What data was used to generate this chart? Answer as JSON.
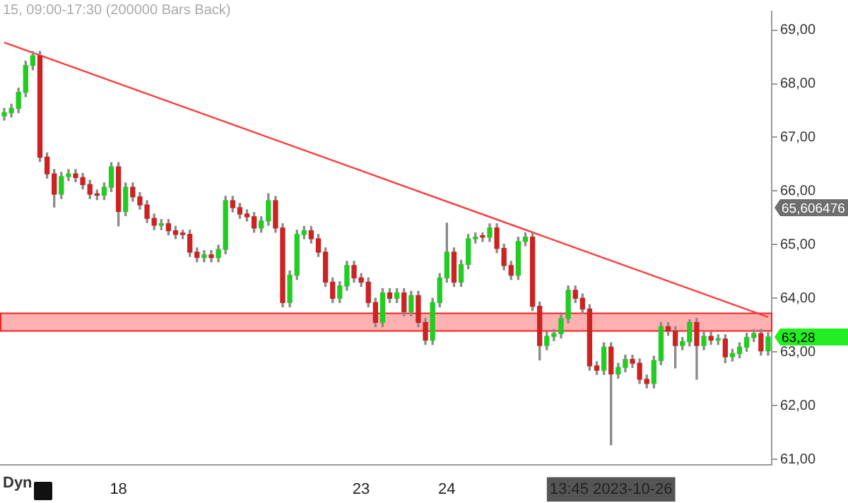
{
  "chart_data": {
    "type": "candlestick",
    "title": "15, 09:00-17:30 (200000 Bars Back)",
    "categories": [
      null,
      null,
      null,
      null,
      null,
      null,
      null,
      null,
      null,
      null,
      null,
      null,
      null,
      null,
      null,
      null,
      "18",
      null,
      null,
      null,
      null,
      null,
      null,
      null,
      null,
      null,
      null,
      null,
      null,
      null,
      null,
      null,
      null,
      null,
      null,
      null,
      null,
      null,
      null,
      null,
      null,
      null,
      null,
      null,
      null,
      null,
      null,
      null,
      null,
      null,
      "23",
      null,
      null,
      null,
      null,
      null,
      null,
      null,
      null,
      null,
      null,
      null,
      "24",
      null,
      null,
      null,
      null,
      null,
      null,
      null,
      null,
      null,
      null,
      null,
      null,
      null,
      null,
      null,
      null,
      null,
      null,
      null,
      null,
      null,
      null,
      "13:45 2023-10-26",
      null,
      null,
      null,
      null,
      null,
      null,
      null,
      null,
      null,
      null,
      null,
      null,
      null,
      null,
      null,
      null,
      null,
      null,
      null,
      null,
      null,
      null
    ],
    "ohlc": [
      [
        67.4,
        67.54,
        67.32,
        67.46
      ],
      [
        67.46,
        67.62,
        67.38,
        67.54
      ],
      [
        67.54,
        67.92,
        67.46,
        67.84
      ],
      [
        67.84,
        68.42,
        67.76,
        68.34
      ],
      [
        68.34,
        68.6,
        68.26,
        68.52
      ],
      [
        68.52,
        68.6,
        66.55,
        66.63
      ],
      [
        66.63,
        66.71,
        66.24,
        66.32
      ],
      [
        66.32,
        66.4,
        65.7,
        65.94
      ],
      [
        65.94,
        66.35,
        65.86,
        66.27
      ],
      [
        66.27,
        66.4,
        66.19,
        66.32
      ],
      [
        66.32,
        66.4,
        66.17,
        66.25
      ],
      [
        66.25,
        66.33,
        66.04,
        66.12
      ],
      [
        66.12,
        66.2,
        65.86,
        65.94
      ],
      [
        65.94,
        66.02,
        65.84,
        65.92
      ],
      [
        65.92,
        66.15,
        65.84,
        66.07
      ],
      [
        66.07,
        66.53,
        65.99,
        66.45
      ],
      [
        66.45,
        66.53,
        65.35,
        65.62
      ],
      [
        65.62,
        66.15,
        65.54,
        66.07
      ],
      [
        66.07,
        66.15,
        65.81,
        65.89
      ],
      [
        65.89,
        65.97,
        65.66,
        65.74
      ],
      [
        65.74,
        65.82,
        65.41,
        65.49
      ],
      [
        65.49,
        65.57,
        65.28,
        65.36
      ],
      [
        65.36,
        65.47,
        65.28,
        65.39
      ],
      [
        65.39,
        65.47,
        65.18,
        65.26
      ],
      [
        65.26,
        65.34,
        65.11,
        65.19
      ],
      [
        65.19,
        65.27,
        65.11,
        65.19
      ],
      [
        65.19,
        65.27,
        64.78,
        64.86
      ],
      [
        64.86,
        64.94,
        64.68,
        64.76
      ],
      [
        64.76,
        64.89,
        64.68,
        64.81
      ],
      [
        64.81,
        64.89,
        64.68,
        64.76
      ],
      [
        64.76,
        64.99,
        64.68,
        64.91
      ],
      [
        64.91,
        65.9,
        64.83,
        65.82
      ],
      [
        65.82,
        65.9,
        65.61,
        65.69
      ],
      [
        65.69,
        65.77,
        65.49,
        65.57
      ],
      [
        65.57,
        65.65,
        65.44,
        65.52
      ],
      [
        65.52,
        65.6,
        65.23,
        65.31
      ],
      [
        65.31,
        65.52,
        65.23,
        65.44
      ],
      [
        65.44,
        65.95,
        65.36,
        65.82
      ],
      [
        65.82,
        65.9,
        65.23,
        65.31
      ],
      [
        65.31,
        65.39,
        63.84,
        63.92
      ],
      [
        63.92,
        64.51,
        63.84,
        64.43
      ],
      [
        64.43,
        65.27,
        64.35,
        65.19
      ],
      [
        65.19,
        65.34,
        65.11,
        65.26
      ],
      [
        65.26,
        65.34,
        65.03,
        65.11
      ],
      [
        65.11,
        65.19,
        64.78,
        64.86
      ],
      [
        64.86,
        64.94,
        64.22,
        64.3
      ],
      [
        64.3,
        64.38,
        63.92,
        64.0
      ],
      [
        64.0,
        64.31,
        63.92,
        64.23
      ],
      [
        64.23,
        64.69,
        64.15,
        64.61
      ],
      [
        64.61,
        64.69,
        64.3,
        64.38
      ],
      [
        64.38,
        64.46,
        64.22,
        64.3
      ],
      [
        64.3,
        64.38,
        63.84,
        63.92
      ],
      [
        63.92,
        64.0,
        63.47,
        63.55
      ],
      [
        63.55,
        64.18,
        63.47,
        64.1
      ],
      [
        64.1,
        64.18,
        63.92,
        64.0
      ],
      [
        64.0,
        64.18,
        63.92,
        64.1
      ],
      [
        64.1,
        64.18,
        63.67,
        63.75
      ],
      [
        63.75,
        64.13,
        63.67,
        64.05
      ],
      [
        64.05,
        64.13,
        63.47,
        63.55
      ],
      [
        63.55,
        63.63,
        63.14,
        63.22
      ],
      [
        63.22,
        64.0,
        63.14,
        63.92
      ],
      [
        63.92,
        64.46,
        63.84,
        64.38
      ],
      [
        64.38,
        65.4,
        64.3,
        64.86
      ],
      [
        64.86,
        64.94,
        64.22,
        64.3
      ],
      [
        64.3,
        64.71,
        64.22,
        64.63
      ],
      [
        64.63,
        65.19,
        64.55,
        65.11
      ],
      [
        65.11,
        65.22,
        65.03,
        65.14
      ],
      [
        65.14,
        65.22,
        65.06,
        65.14
      ],
      [
        65.14,
        65.39,
        65.06,
        65.31
      ],
      [
        65.31,
        65.39,
        64.85,
        64.93
      ],
      [
        64.93,
        65.01,
        64.53,
        64.61
      ],
      [
        64.61,
        64.69,
        64.35,
        64.43
      ],
      [
        64.43,
        65.14,
        64.35,
        65.06
      ],
      [
        65.06,
        65.22,
        64.98,
        65.14
      ],
      [
        65.14,
        65.22,
        63.77,
        63.85
      ],
      [
        63.85,
        63.93,
        62.85,
        63.12
      ],
      [
        63.12,
        63.37,
        63.04,
        63.29
      ],
      [
        63.29,
        63.42,
        63.21,
        63.34
      ],
      [
        63.34,
        63.7,
        63.26,
        63.62
      ],
      [
        63.62,
        64.23,
        63.54,
        64.15
      ],
      [
        64.15,
        64.23,
        63.92,
        64.0
      ],
      [
        64.0,
        64.08,
        63.72,
        63.8
      ],
      [
        63.8,
        63.88,
        62.66,
        62.74
      ],
      [
        62.74,
        62.82,
        62.58,
        62.66
      ],
      [
        62.66,
        63.17,
        62.58,
        63.09
      ],
      [
        63.09,
        63.17,
        61.27,
        62.59
      ],
      [
        62.59,
        62.79,
        62.51,
        62.71
      ],
      [
        62.71,
        62.94,
        62.63,
        62.86
      ],
      [
        62.86,
        62.94,
        62.71,
        62.79
      ],
      [
        62.79,
        62.87,
        62.41,
        62.49
      ],
      [
        62.49,
        62.57,
        62.33,
        62.41
      ],
      [
        62.41,
        62.92,
        62.33,
        62.84
      ],
      [
        62.84,
        63.55,
        62.76,
        63.47
      ],
      [
        63.47,
        63.55,
        63.31,
        63.39
      ],
      [
        63.39,
        63.47,
        62.7,
        63.12
      ],
      [
        63.12,
        63.27,
        63.04,
        63.19
      ],
      [
        63.19,
        63.6,
        63.11,
        63.55
      ],
      [
        63.55,
        63.63,
        62.49,
        63.12
      ],
      [
        63.12,
        63.37,
        63.04,
        63.29
      ],
      [
        63.29,
        63.37,
        63.14,
        63.22
      ],
      [
        63.22,
        63.32,
        63.14,
        63.24
      ],
      [
        63.24,
        63.32,
        62.8,
        62.91
      ],
      [
        62.91,
        63.05,
        62.83,
        62.97
      ],
      [
        62.97,
        63.17,
        62.89,
        63.09
      ],
      [
        63.09,
        63.35,
        63.01,
        63.27
      ],
      [
        63.27,
        63.42,
        63.19,
        63.34
      ],
      [
        63.34,
        63.42,
        62.94,
        63.02
      ],
      [
        63.02,
        63.36,
        62.94,
        63.28
      ]
    ],
    "colors": [
      "#22cc22",
      "#22cc22",
      "#22cc22",
      "#22cc22",
      "#22cc22",
      "#cc2222",
      "#cc2222",
      "#cc2222",
      "#22cc22",
      "#22cc22",
      "#cc2222",
      "#cc2222",
      "#cc2222",
      "#cc2222",
      "#22cc22",
      "#22cc22",
      "#cc2222",
      "#22cc22",
      "#cc2222",
      "#cc2222",
      "#cc2222",
      "#cc2222",
      "#22cc22",
      "#cc2222",
      "#cc2222",
      "#cc2222",
      "#cc2222",
      "#cc2222",
      "#22cc22",
      "#cc2222",
      "#22cc22",
      "#22cc22",
      "#cc2222",
      "#cc2222",
      "#cc2222",
      "#cc2222",
      "#22cc22",
      "#22cc22",
      "#cc2222",
      "#cc2222",
      "#22cc22",
      "#22cc22",
      "#22cc22",
      "#cc2222",
      "#cc2222",
      "#cc2222",
      "#cc2222",
      "#22cc22",
      "#22cc22",
      "#cc2222",
      "#cc2222",
      "#cc2222",
      "#cc2222",
      "#22cc22",
      "#cc2222",
      "#22cc22",
      "#cc2222",
      "#22cc22",
      "#cc2222",
      "#cc2222",
      "#22cc22",
      "#22cc22",
      "#22cc22",
      "#cc2222",
      "#22cc22",
      "#22cc22",
      "#22cc22",
      "#cc2222",
      "#22cc22",
      "#cc2222",
      "#cc2222",
      "#cc2222",
      "#22cc22",
      "#22cc22",
      "#cc2222",
      "#cc2222",
      "#22cc22",
      "#22cc22",
      "#22cc22",
      "#22cc22",
      "#cc2222",
      "#cc2222",
      "#cc2222",
      "#cc2222",
      "#22cc22",
      "#cc2222",
      "#22cc22",
      "#22cc22",
      "#cc2222",
      "#cc2222",
      "#cc2222",
      "#22cc22",
      "#22cc22",
      "#cc2222",
      "#cc2222",
      "#22cc22",
      "#22cc22",
      "#cc2222",
      "#22cc22",
      "#cc2222",
      "#22cc22",
      "#cc2222",
      "#22cc22",
      "#22cc22",
      "#22cc22",
      "#22cc22",
      "#cc2222",
      "#22cc22"
    ],
    "series": [
      {
        "type": "line",
        "color": "#ff3b3b",
        "values": [
          68.77,
          null,
          null,
          null,
          null,
          null,
          null,
          null,
          null,
          null,
          null,
          null,
          null,
          null,
          null,
          null,
          null,
          null,
          null,
          null,
          null,
          null,
          null,
          null,
          null,
          null,
          null,
          null,
          null,
          null,
          null,
          null,
          null,
          null,
          null,
          null,
          null,
          null,
          null,
          null,
          null,
          null,
          null,
          null,
          null,
          null,
          null,
          null,
          null,
          null,
          null,
          null,
          null,
          null,
          null,
          null,
          null,
          null,
          null,
          null,
          null,
          null,
          null,
          null,
          null,
          null,
          null,
          null,
          null,
          null,
          null,
          null,
          null,
          null,
          null,
          null,
          null,
          null,
          null,
          null,
          null,
          null,
          null,
          null,
          null,
          null,
          null,
          null,
          null,
          null,
          null,
          null,
          null,
          null,
          null,
          null,
          null,
          null,
          null,
          null,
          null,
          null,
          null,
          null,
          null,
          null,
          null,
          63.65
        ]
      }
    ],
    "ylim": [
      60.9,
      69.35
    ],
    "yticks": [
      {
        "value": 61,
        "label": "61,00"
      },
      {
        "value": 62,
        "label": "62,00"
      },
      {
        "value": 63,
        "label": "63,00"
      },
      {
        "value": 64,
        "label": "64,00"
      },
      {
        "value": 65,
        "label": "65,00"
      },
      {
        "value": 66,
        "label": "66,00"
      },
      {
        "value": 67,
        "label": "67,00"
      },
      {
        "value": 68,
        "label": "68,00"
      },
      {
        "value": 69,
        "label": "69,00"
      }
    ],
    "bands": [
      {
        "axis": "y",
        "from": 63.39,
        "to": 63.72,
        "color": "#ff9e9e"
      }
    ],
    "annotations": [
      "Dyn",
      "65,606476",
      "63,28"
    ]
  }
}
